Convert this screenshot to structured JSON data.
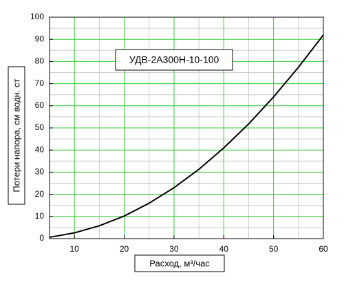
{
  "chart_data": {
    "type": "line",
    "title": "УДВ-2А300Н-10-100",
    "x_label": "Расход, м³/час",
    "y_label": "Потери напора, см водн. ст",
    "x": [
      5,
      10,
      15,
      20,
      25,
      30,
      35,
      40,
      45,
      50,
      55,
      60
    ],
    "series": [
      {
        "name": "УДВ-2А300Н-10-100",
        "color": "#000000",
        "values": [
          0.6,
          2.6,
          5.8,
          10.2,
          16,
          23,
          31.3,
          41,
          51.8,
          64,
          77.4,
          92
        ]
      }
    ],
    "xlim": [
      5,
      60
    ],
    "ylim": [
      0,
      100
    ],
    "xticks": [
      10,
      20,
      30,
      40,
      50,
      60
    ],
    "yticks": [
      0,
      10,
      20,
      30,
      40,
      50,
      60,
      70,
      80,
      90,
      100
    ],
    "xminor": [
      15,
      25,
      35,
      45,
      55
    ],
    "yminor": [
      5,
      15,
      25,
      35,
      45,
      55,
      65,
      75,
      85,
      95
    ],
    "grid": true,
    "grid_color": "#33cc33",
    "minor_grid_color": "#cccccc"
  }
}
